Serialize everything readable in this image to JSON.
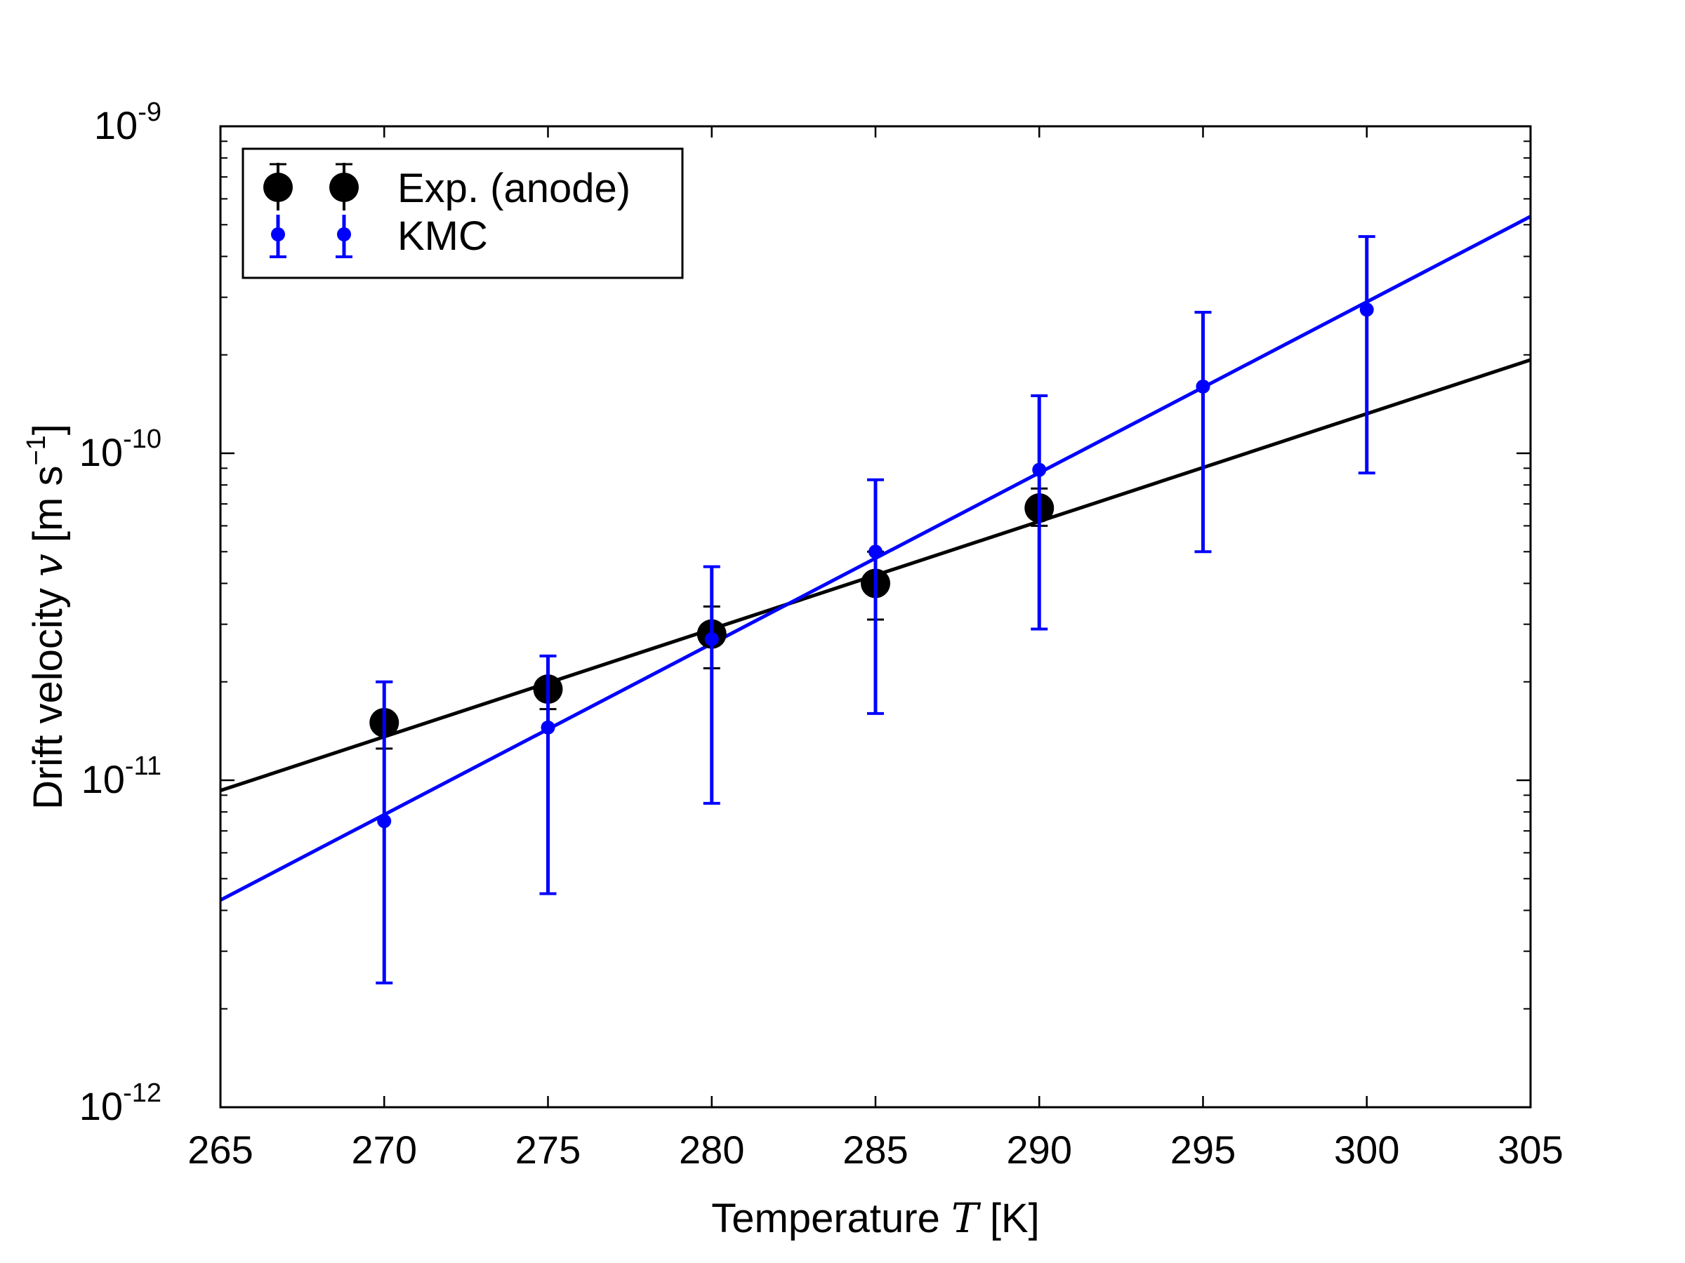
{
  "chart_data": {
    "type": "scatter",
    "xlabel": "Temperature",
    "xlabel_var": "T",
    "xlabel_unit": "[K]",
    "ylabel": "Drift velocity",
    "ylabel_var": "v",
    "ylabel_unit_prefix": "[m s",
    "ylabel_unit_exp": "−1",
    "ylabel_unit_suffix": "]",
    "yscale": "log",
    "xlim": [
      265,
      305
    ],
    "ylim": [
      1e-12,
      1e-09
    ],
    "x_ticks": [
      {
        "value": 265,
        "label": "265"
      },
      {
        "value": 270,
        "label": "270"
      },
      {
        "value": 275,
        "label": "275"
      },
      {
        "value": 280,
        "label": "280"
      },
      {
        "value": 285,
        "label": "285"
      },
      {
        "value": 290,
        "label": "290"
      },
      {
        "value": 295,
        "label": "295"
      },
      {
        "value": 300,
        "label": "300"
      },
      {
        "value": 305,
        "label": "305"
      }
    ],
    "y_ticks": [
      {
        "value": 1e-12,
        "base": "10",
        "exp": "-12"
      },
      {
        "value": 1e-11,
        "base": "10",
        "exp": "-11"
      },
      {
        "value": 1e-10,
        "base": "10",
        "exp": "-10"
      },
      {
        "value": 1e-09,
        "base": "10",
        "exp": "-9"
      }
    ],
    "grid": false,
    "legend_position": "top-left",
    "series": [
      {
        "name": "Exp. (anode)",
        "color": "#000000",
        "marker": "large-circle",
        "points": [
          {
            "x": 270,
            "y": 1.5e-11,
            "ylow": 1.25e-11,
            "yhigh": 2e-11
          },
          {
            "x": 275,
            "y": 1.9e-11,
            "ylow": 1.65e-11,
            "yhigh": 2.4e-11
          },
          {
            "x": 280,
            "y": 2.8e-11,
            "ylow": 2.2e-11,
            "yhigh": 3.4e-11
          },
          {
            "x": 285,
            "y": 4e-11,
            "ylow": 3.1e-11,
            "yhigh": 5e-11
          },
          {
            "x": 290,
            "y": 6.8e-11,
            "ylow": 6e-11,
            "yhigh": 7.8e-11
          }
        ],
        "fit_line": {
          "x": [
            265,
            305
          ],
          "y": [
            9.3e-12,
            1.93e-10
          ]
        }
      },
      {
        "name": "KMC",
        "color": "#0000ff",
        "marker": "small-circle",
        "points": [
          {
            "x": 270,
            "y": 7.5e-12,
            "ylow": 2.4e-12,
            "yhigh": 2e-11
          },
          {
            "x": 275,
            "y": 1.45e-11,
            "ylow": 4.5e-12,
            "yhigh": 2.4e-11
          },
          {
            "x": 280,
            "y": 2.7e-11,
            "ylow": 8.5e-12,
            "yhigh": 4.5e-11
          },
          {
            "x": 285,
            "y": 5e-11,
            "ylow": 1.6e-11,
            "yhigh": 8.3e-11
          },
          {
            "x": 290,
            "y": 8.9e-11,
            "ylow": 2.9e-11,
            "yhigh": 1.5e-10
          },
          {
            "x": 295,
            "y": 1.6e-10,
            "ylow": 5e-11,
            "yhigh": 2.7e-10
          },
          {
            "x": 300,
            "y": 2.75e-10,
            "ylow": 8.7e-11,
            "yhigh": 4.6e-10
          }
        ],
        "fit_line": {
          "x": [
            265,
            305
          ],
          "y": [
            4.3e-12,
            5.3e-10
          ]
        }
      }
    ]
  }
}
